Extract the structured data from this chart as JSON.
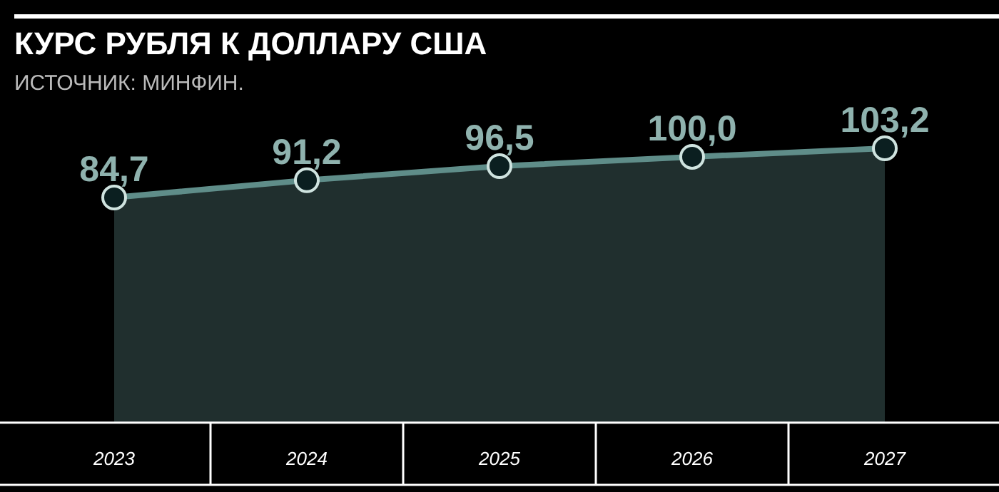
{
  "chart_data": {
    "type": "area",
    "title": "КУРС РУБЛЯ К ДОЛЛАРУ США",
    "subtitle": "ИСТОЧНИК: МИНФИН.",
    "categories": [
      "2023",
      "2024",
      "2025",
      "2026",
      "2027"
    ],
    "series": [
      {
        "color": "#5f8d89",
        "values": [
          84.7,
          91.2,
          96.5,
          100.0,
          103.2
        ],
        "value_labels": [
          "84,7",
          "91,2",
          "96,5",
          "100,0",
          "103,2"
        ]
      }
    ],
    "marker": "circle",
    "legend": false
  }
}
